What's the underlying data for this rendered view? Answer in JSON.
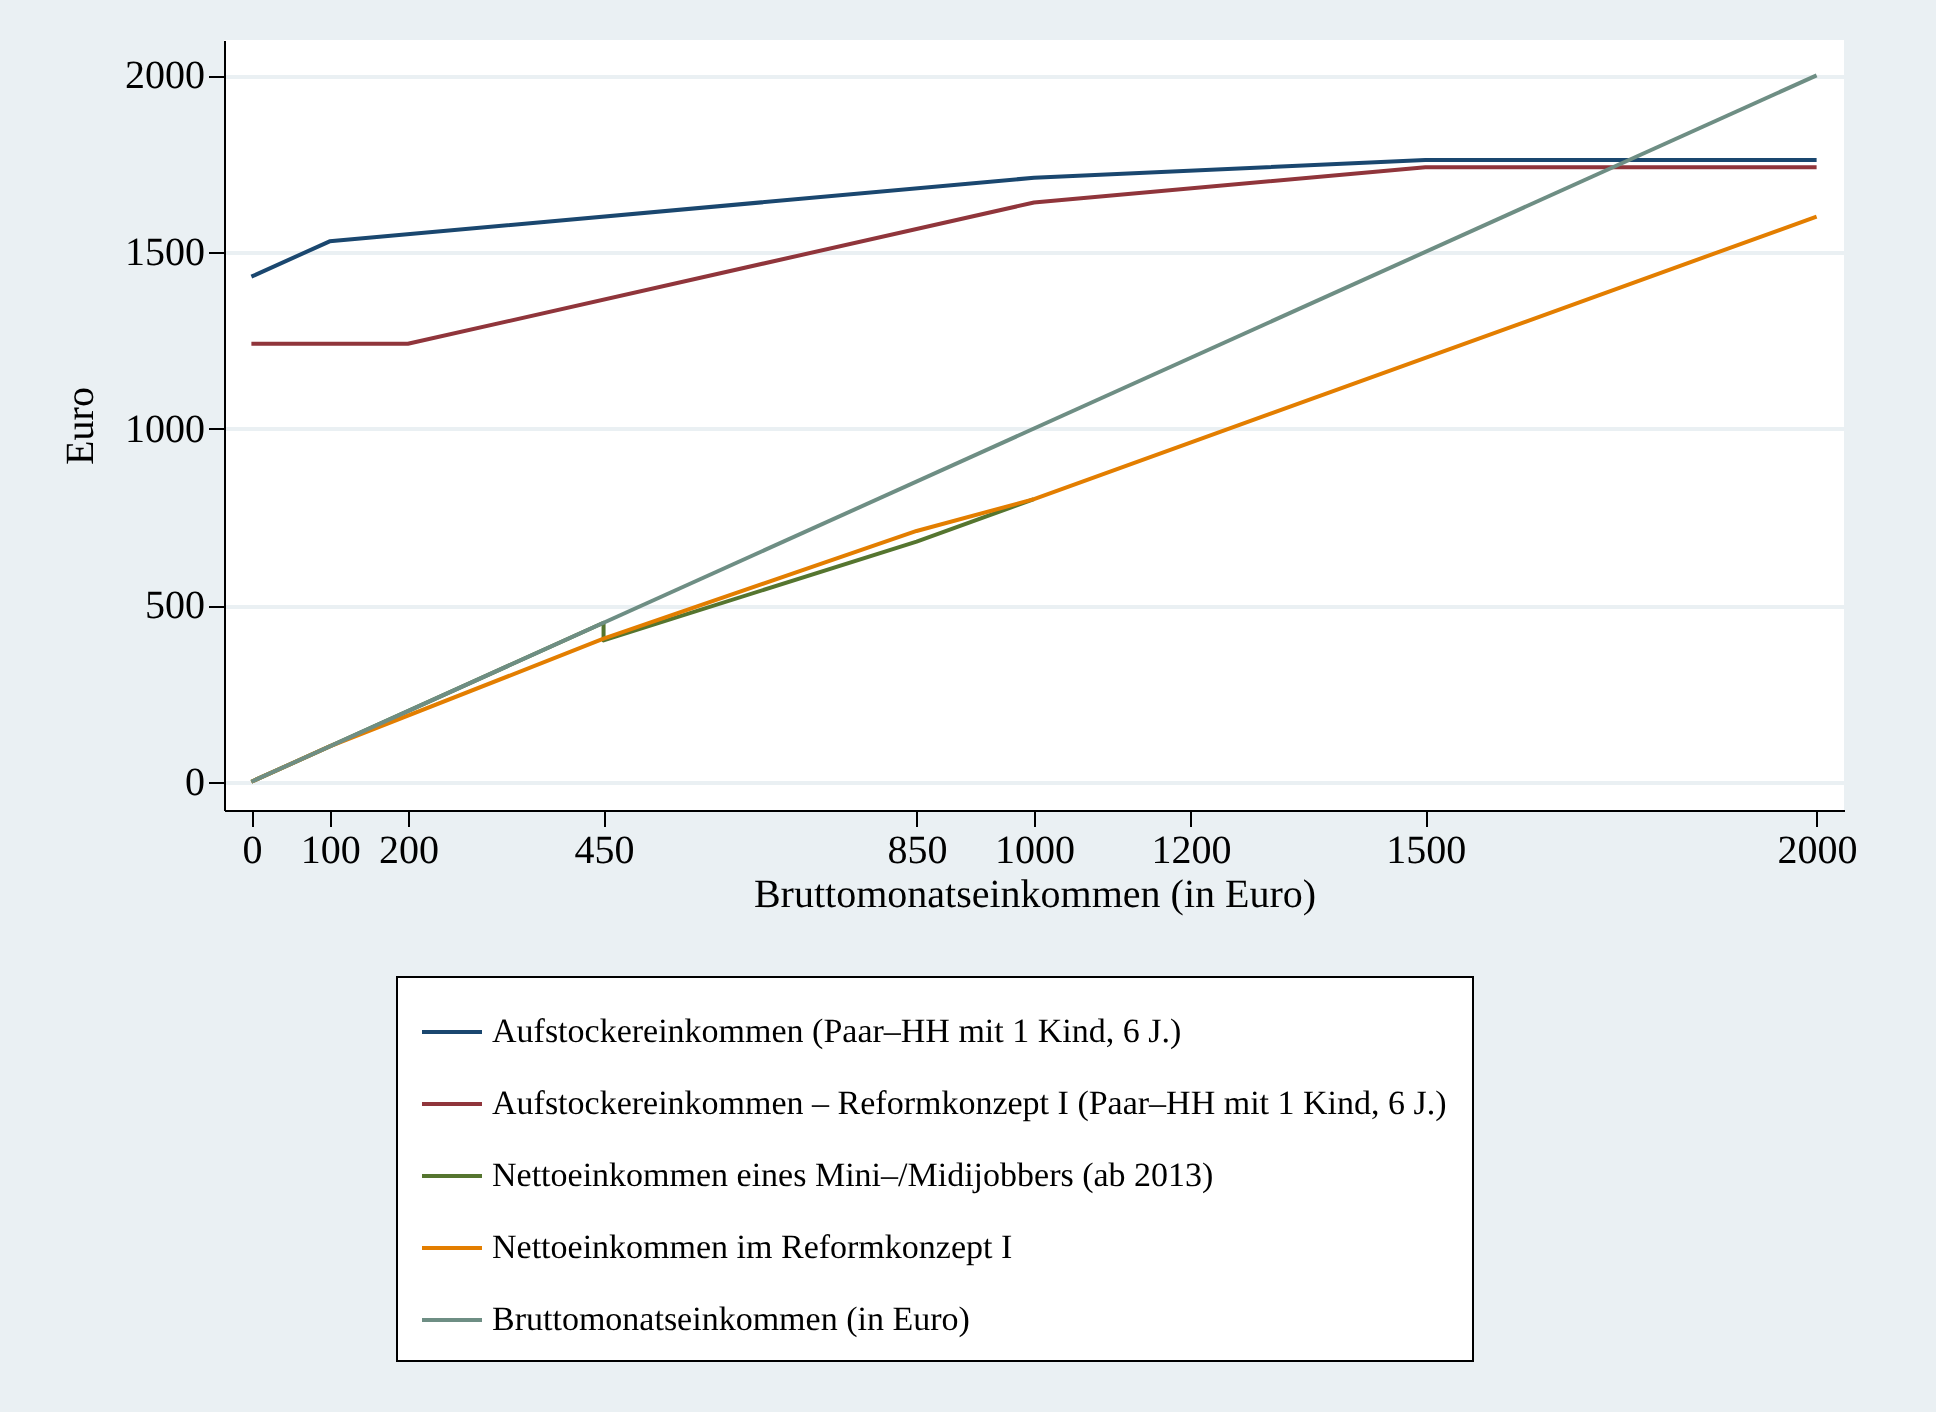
{
  "chart_data": {
    "type": "line",
    "xlabel": "Bruttomonatseinkommen (in Euro)",
    "ylabel": "Euro",
    "xlim": [
      -35,
      2035
    ],
    "ylim": [
      -80,
      2100
    ],
    "xticks": [
      0,
      100,
      200,
      450,
      850,
      1000,
      1200,
      1500,
      2000
    ],
    "yticks": [
      0,
      500,
      1000,
      1500,
      2000
    ],
    "grid": "y",
    "legend": "bottom",
    "marker": "none",
    "line_style": "solid",
    "series": [
      {
        "name": "Aufstockereinkommen (Paar–HH mit 1 Kind, 6 J.)",
        "color": "#1a476f",
        "x": [
          0,
          100,
          1000,
          1500,
          2000
        ],
        "values": [
          1430,
          1530,
          1710,
          1760,
          1760
        ]
      },
      {
        "name": "Aufstockereinkommen – Reformkonzept I (Paar–HH mit 1 Kind, 6 J.)",
        "color": "#90353b",
        "x": [
          0,
          200,
          1000,
          1500,
          2000
        ],
        "values": [
          1240,
          1240,
          1640,
          1740,
          1740
        ]
      },
      {
        "name": "Nettoeinkommen eines Mini–/Midijobbers (ab 2013)",
        "color": "#55752f",
        "x": [
          0,
          450,
          450,
          850,
          1000
        ],
        "values": [
          0,
          450,
          400,
          680,
          800
        ]
      },
      {
        "name": "Nettoeinkommen im Reformkonzept I",
        "color": "#e37e00",
        "x": [
          0,
          100,
          450,
          850,
          1000,
          2000
        ],
        "values": [
          0,
          100,
          405,
          710,
          800,
          1600
        ]
      },
      {
        "name": "Bruttomonatseinkommen (in Euro)",
        "color": "#6e8e84",
        "x": [
          0,
          2000
        ],
        "values": [
          0,
          2000
        ]
      }
    ]
  }
}
